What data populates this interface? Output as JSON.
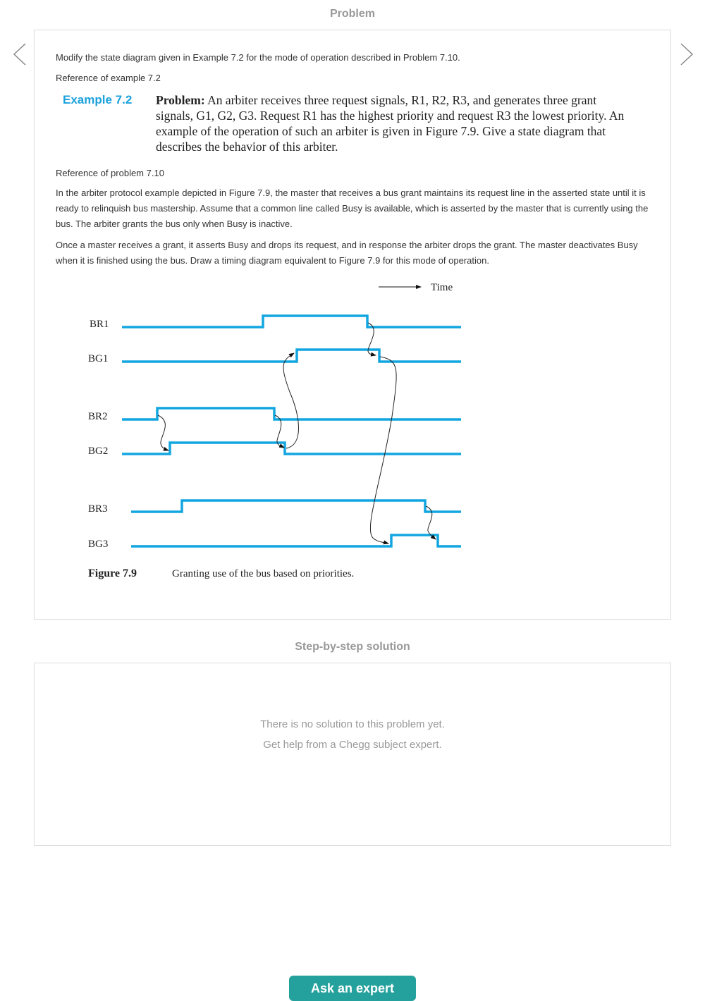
{
  "problem_header": "Problem",
  "nav": {
    "prev_icon": "chevron-left-icon",
    "next_icon": "chevron-right-icon"
  },
  "problem": {
    "intro": "Modify the state diagram given in Example 7.2 for the mode of operation described in Problem 7.10.",
    "ref_example": "Reference of example 7.2",
    "example_label": "Example 7.2",
    "example_bold": "Problem:",
    "example_text": " An arbiter receives three request signals, R1, R2, R3, and generates three grant signals, G1, G2, G3. Request R1 has the highest priority and request R3 the lowest priority. An example of the operation of such an arbiter is given in Figure 7.9. Give a state diagram that describes the behavior of this arbiter.",
    "ref_problem": "Reference of problem 7.10",
    "para1": "In the arbiter protocol example depicted in Figure 7.9, the master that receives a bus grant maintains its request line in the asserted state until it is ready to relinquish bus mastership. Assume that a common line called Busy is available, which is asserted by the master that is currently using the bus. The arbiter grants the bus only when Busy is inactive.",
    "para2": "Once a master receives a grant, it asserts Busy and drops its request, and in response the arbiter drops the grant. The master deactivates Busy when it is finished using the bus. Draw a timing diagram equivalent to Figure 7.9 for this mode of operation."
  },
  "figure": {
    "time_label": "Time",
    "signals": [
      "BR1",
      "BG1",
      "BR2",
      "BG2",
      "BR3",
      "BG3"
    ],
    "caption_label": "Figure 7.9",
    "caption_text": "Granting use of the bus based on priorities.",
    "wave_color": "#12a6e0"
  },
  "solution": {
    "header": "Step-by-step solution",
    "line1": "There is no solution to this problem yet.",
    "line2": "Get help from a Chegg subject expert.",
    "button": "Ask an expert",
    "button_color": "#24a19c"
  }
}
